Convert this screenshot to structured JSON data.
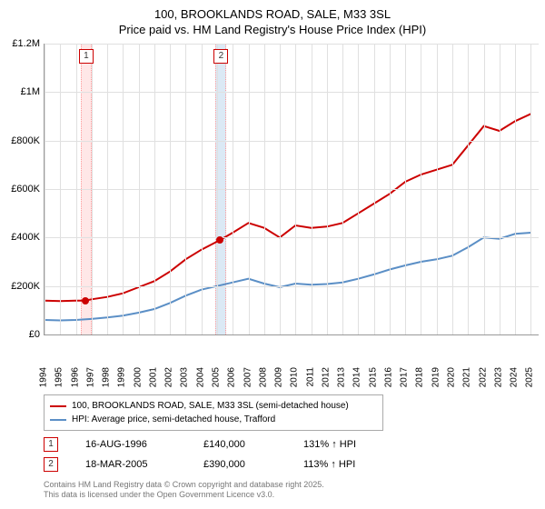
{
  "title_line1": "100, BROOKLANDS ROAD, SALE, M33 3SL",
  "title_line2": "Price paid vs. HM Land Registry's House Price Index (HPI)",
  "chart": {
    "type": "line",
    "xlim": [
      1994,
      2025.5
    ],
    "ylim": [
      0,
      1200000
    ],
    "ytick_step": 200000,
    "y_labels": [
      "£0",
      "£200K",
      "£400K",
      "£600K",
      "£800K",
      "£1M",
      "£1.2M"
    ],
    "x_years": [
      1994,
      1995,
      1996,
      1997,
      1998,
      1999,
      2000,
      2001,
      2002,
      2003,
      2004,
      2005,
      2006,
      2007,
      2008,
      2009,
      2010,
      2011,
      2012,
      2013,
      2014,
      2015,
      2016,
      2017,
      2018,
      2019,
      2020,
      2021,
      2022,
      2023,
      2024,
      2025
    ],
    "grid_color": "#e0e0e0",
    "axis_color": "#999999",
    "background_color": "#ffffff",
    "series": [
      {
        "name": "address",
        "color": "#cc0000",
        "points": [
          [
            1994,
            140000
          ],
          [
            1995,
            138000
          ],
          [
            1996,
            140000
          ],
          [
            1996.6,
            140000
          ],
          [
            1997,
            145000
          ],
          [
            1998,
            155000
          ],
          [
            1999,
            170000
          ],
          [
            2000,
            195000
          ],
          [
            2001,
            220000
          ],
          [
            2002,
            260000
          ],
          [
            2003,
            310000
          ],
          [
            2004,
            350000
          ],
          [
            2005.2,
            390000
          ],
          [
            2006,
            420000
          ],
          [
            2007,
            460000
          ],
          [
            2008,
            440000
          ],
          [
            2009,
            400000
          ],
          [
            2010,
            450000
          ],
          [
            2011,
            440000
          ],
          [
            2012,
            445000
          ],
          [
            2013,
            460000
          ],
          [
            2014,
            500000
          ],
          [
            2015,
            540000
          ],
          [
            2016,
            580000
          ],
          [
            2017,
            630000
          ],
          [
            2018,
            660000
          ],
          [
            2019,
            680000
          ],
          [
            2020,
            700000
          ],
          [
            2021,
            780000
          ],
          [
            2022,
            860000
          ],
          [
            2023,
            840000
          ],
          [
            2024,
            880000
          ],
          [
            2025,
            910000
          ]
        ]
      },
      {
        "name": "hpi",
        "color": "#5b8fc6",
        "points": [
          [
            1994,
            60000
          ],
          [
            1995,
            58000
          ],
          [
            1996,
            60000
          ],
          [
            1997,
            64000
          ],
          [
            1998,
            70000
          ],
          [
            1999,
            78000
          ],
          [
            2000,
            90000
          ],
          [
            2001,
            105000
          ],
          [
            2002,
            130000
          ],
          [
            2003,
            160000
          ],
          [
            2004,
            185000
          ],
          [
            2005,
            200000
          ],
          [
            2006,
            215000
          ],
          [
            2007,
            230000
          ],
          [
            2008,
            210000
          ],
          [
            2009,
            195000
          ],
          [
            2010,
            210000
          ],
          [
            2011,
            205000
          ],
          [
            2012,
            208000
          ],
          [
            2013,
            215000
          ],
          [
            2014,
            230000
          ],
          [
            2015,
            248000
          ],
          [
            2016,
            268000
          ],
          [
            2017,
            285000
          ],
          [
            2018,
            300000
          ],
          [
            2019,
            310000
          ],
          [
            2020,
            325000
          ],
          [
            2021,
            360000
          ],
          [
            2022,
            400000
          ],
          [
            2023,
            395000
          ],
          [
            2024,
            415000
          ],
          [
            2025,
            420000
          ]
        ]
      }
    ],
    "sale_markers": [
      {
        "idx": "1",
        "year": 1996.6,
        "price": 140000,
        "band_color": "#ffe7e7",
        "line_color": "#ff9a9a"
      },
      {
        "idx": "2",
        "year": 2005.2,
        "price": 390000,
        "band_color": "#dbe9f5",
        "line_color": "#ff9a9a"
      }
    ]
  },
  "legend": {
    "address_label": "100, BROOKLANDS ROAD, SALE, M33 3SL (semi-detached house)",
    "hpi_label": "HPI: Average price, semi-detached house, Trafford"
  },
  "sales": [
    {
      "idx": "1",
      "date": "16-AUG-1996",
      "price": "£140,000",
      "vs_hpi": "131% ↑ HPI"
    },
    {
      "idx": "2",
      "date": "18-MAR-2005",
      "price": "£390,000",
      "vs_hpi": "113% ↑ HPI"
    }
  ],
  "footer1": "Contains HM Land Registry data © Crown copyright and database right 2025.",
  "footer2": "This data is licensed under the Open Government Licence v3.0."
}
